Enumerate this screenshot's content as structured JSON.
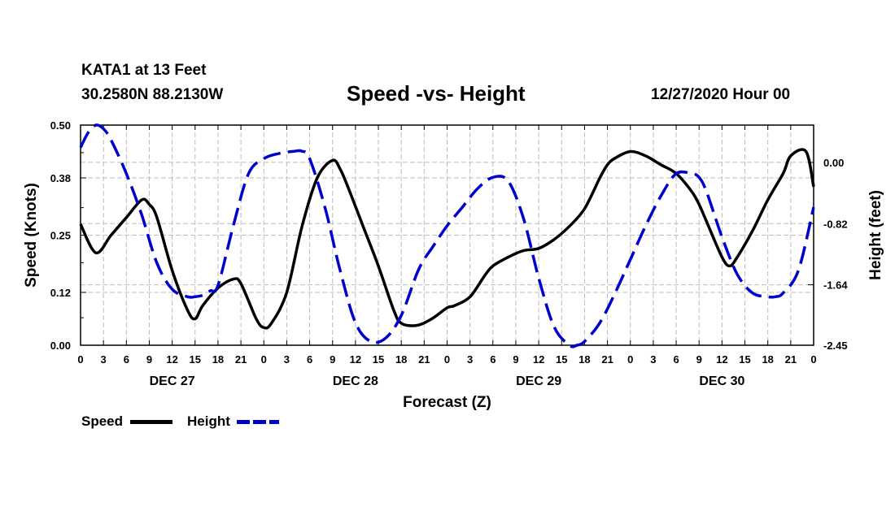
{
  "header": {
    "station": "KATA1 at 13 Feet",
    "coords": "30.2580N 88.2130W",
    "title": "Speed -vs- Height",
    "issued": "12/27/2020 Hour 00"
  },
  "legend": [
    {
      "label": "Speed",
      "color": "#000000",
      "style": "solid"
    },
    {
      "label": "Height",
      "color": "#0000cc",
      "style": "dashed"
    }
  ],
  "chart_data": {
    "type": "line",
    "title": "Speed -vs- Height",
    "xlabel": "Forecast (Z)",
    "ylabel_left": "Speed (Knots)",
    "ylabel_right": "Height (feet)",
    "x_unit": "hours from 12/27/2020 00Z",
    "x_range": [
      0,
      96
    ],
    "x_tick_labels": [
      "0",
      "3",
      "6",
      "9",
      "12",
      "15",
      "18",
      "21",
      "0",
      "3",
      "6",
      "9",
      "12",
      "15",
      "18",
      "21",
      "0",
      "3",
      "6",
      "9",
      "12",
      "15",
      "18",
      "21",
      "0",
      "3",
      "6",
      "9",
      "12",
      "15",
      "18",
      "21",
      "0"
    ],
    "day_labels": [
      {
        "label": "DEC 27",
        "x": 12
      },
      {
        "label": "DEC 28",
        "x": 36
      },
      {
        "label": "DEC 29",
        "x": 60
      },
      {
        "label": "DEC 30",
        "x": 84
      }
    ],
    "y_left": {
      "range": [
        0,
        0.5
      ],
      "ticks": [
        "0.00",
        "0.12",
        "0.25",
        "0.38",
        "0.50"
      ]
    },
    "y_right": {
      "range": [
        -2.45,
        0.5
      ],
      "ticks": [
        "-2.45",
        "-1.64",
        "-0.82",
        "0.00"
      ]
    },
    "grid": true,
    "series": [
      {
        "name": "Speed",
        "axis": "left",
        "color": "#000000",
        "dash": "solid",
        "x": [
          0,
          2,
          4,
          6,
          8,
          9,
          10,
          12,
          14,
          15,
          16,
          18,
          20,
          21,
          23,
          24,
          25,
          27,
          29,
          31,
          33,
          34,
          35,
          37,
          39,
          41,
          42,
          44,
          46,
          48,
          49,
          51,
          53,
          54,
          56,
          58,
          60,
          62,
          64,
          66,
          68,
          69,
          70,
          72,
          74,
          76,
          78,
          80,
          81,
          82,
          84,
          85,
          86,
          88,
          90,
          92,
          93,
          95,
          96
        ],
        "y": [
          0.275,
          0.21,
          0.25,
          0.29,
          0.33,
          0.32,
          0.29,
          0.17,
          0.08,
          0.06,
          0.09,
          0.13,
          0.15,
          0.14,
          0.06,
          0.04,
          0.05,
          0.12,
          0.27,
          0.38,
          0.42,
          0.4,
          0.36,
          0.27,
          0.18,
          0.08,
          0.05,
          0.045,
          0.06,
          0.085,
          0.09,
          0.11,
          0.16,
          0.18,
          0.2,
          0.215,
          0.22,
          0.24,
          0.27,
          0.31,
          0.38,
          0.41,
          0.425,
          0.44,
          0.43,
          0.41,
          0.39,
          0.35,
          0.32,
          0.28,
          0.2,
          0.18,
          0.2,
          0.26,
          0.33,
          0.39,
          0.43,
          0.44,
          0.36
        ]
      },
      {
        "name": "Height",
        "axis": "right",
        "color": "#0000cc",
        "dash": "dashed",
        "x": [
          0,
          1,
          2,
          3,
          4,
          6,
          8,
          10,
          12,
          14,
          15,
          16,
          17,
          18,
          20,
          22,
          24,
          26,
          28,
          29,
          30,
          32,
          34,
          36,
          38,
          40,
          42,
          44,
          45,
          46,
          48,
          50,
          52,
          54,
          56,
          58,
          60,
          62,
          64,
          65,
          66,
          68,
          70,
          72,
          74,
          76,
          78,
          80,
          81,
          82,
          84,
          86,
          88,
          90,
          91,
          92,
          94,
          96
        ],
        "y": [
          0.2,
          0.4,
          0.5,
          0.45,
          0.3,
          -0.15,
          -0.7,
          -1.35,
          -1.7,
          -1.8,
          -1.8,
          -1.78,
          -1.72,
          -1.65,
          -0.85,
          -0.15,
          0.05,
          0.12,
          0.15,
          0.15,
          0.05,
          -0.6,
          -1.45,
          -2.15,
          -2.4,
          -2.35,
          -2.05,
          -1.5,
          -1.3,
          -1.15,
          -0.85,
          -0.6,
          -0.35,
          -0.2,
          -0.25,
          -0.75,
          -1.55,
          -2.2,
          -2.45,
          -2.45,
          -2.4,
          -2.15,
          -1.75,
          -1.3,
          -0.85,
          -0.45,
          -0.15,
          -0.15,
          -0.2,
          -0.4,
          -1.0,
          -1.5,
          -1.75,
          -1.8,
          -1.8,
          -1.75,
          -1.45,
          -0.6
        ]
      }
    ]
  }
}
